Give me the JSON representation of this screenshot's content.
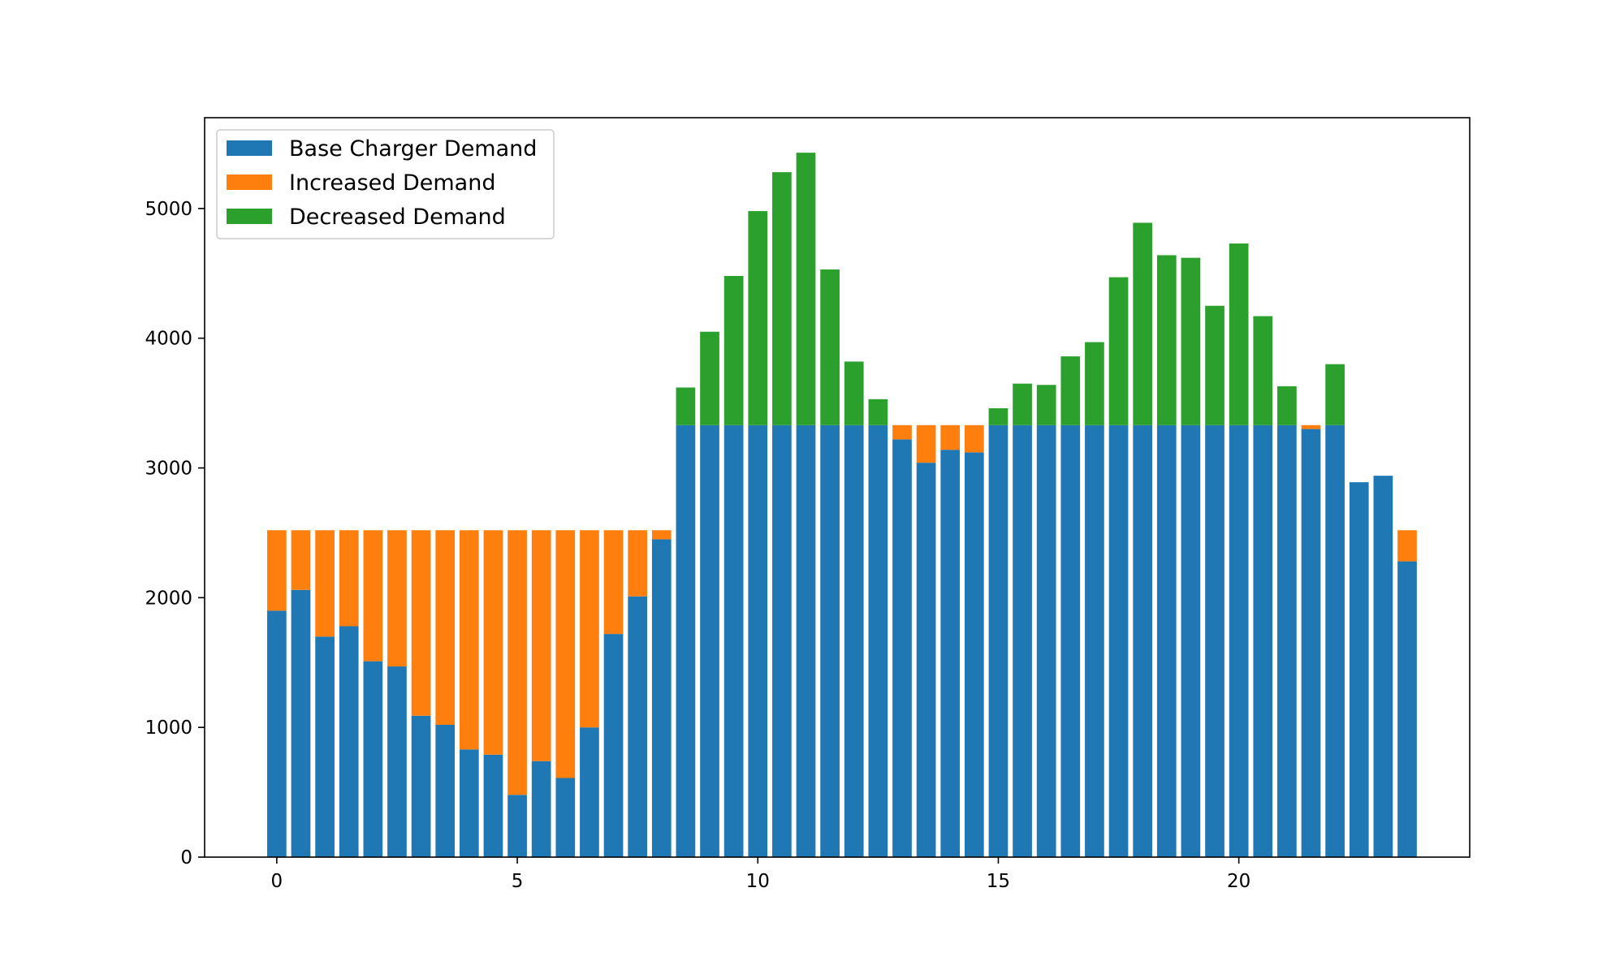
{
  "chart_data": {
    "type": "bar",
    "stacked": true,
    "x": [
      0,
      0.5,
      1,
      1.5,
      2,
      2.5,
      3,
      3.5,
      4,
      4.5,
      5,
      5.5,
      6,
      6.5,
      7,
      7.5,
      8,
      8.5,
      9,
      9.5,
      10,
      10.5,
      11,
      11.5,
      12,
      12.5,
      13,
      13.5,
      14,
      14.5,
      15,
      15.5,
      16,
      16.5,
      17,
      17.5,
      18,
      18.5,
      19,
      19.5,
      20,
      20.5,
      21,
      21.5,
      22,
      22.5,
      23,
      23.5
    ],
    "series": [
      {
        "name": "Base Charger Demand",
        "color": "#1f77b4",
        "values": [
          1900,
          2060,
          1700,
          1780,
          1510,
          1470,
          1090,
          1020,
          830,
          790,
          480,
          740,
          610,
          1000,
          1720,
          2010,
          2450,
          3330,
          3330,
          3330,
          3330,
          3330,
          3330,
          3330,
          3330,
          3330,
          3220,
          3040,
          3140,
          3120,
          3330,
          3330,
          3330,
          3330,
          3330,
          3330,
          3330,
          3330,
          3330,
          3330,
          3330,
          3330,
          3330,
          3300,
          3330,
          2890,
          2940,
          2280
        ]
      },
      {
        "name": "Increased Demand",
        "color": "#ff7f0e",
        "values": [
          620,
          460,
          820,
          740,
          1010,
          1050,
          1430,
          1500,
          1690,
          1730,
          2040,
          1780,
          1910,
          1520,
          800,
          510,
          70,
          0,
          0,
          0,
          0,
          0,
          0,
          0,
          0,
          0,
          110,
          290,
          190,
          210,
          0,
          0,
          0,
          0,
          0,
          0,
          0,
          0,
          0,
          0,
          0,
          0,
          0,
          30,
          0,
          0,
          0,
          240
        ]
      },
      {
        "name": "Decreased Demand",
        "color": "#2ca02c",
        "values": [
          0,
          0,
          0,
          0,
          0,
          0,
          0,
          0,
          0,
          0,
          0,
          0,
          0,
          0,
          0,
          0,
          0,
          290,
          720,
          1150,
          1650,
          1950,
          2100,
          1200,
          490,
          200,
          0,
          0,
          0,
          0,
          130,
          320,
          310,
          530,
          640,
          1140,
          1560,
          1310,
          1290,
          920,
          1400,
          840,
          300,
          0,
          470,
          0,
          0,
          0
        ]
      }
    ],
    "xlim": [
      -1.5,
      24.8
    ],
    "ylim": [
      0,
      5700
    ],
    "xticks": [
      0,
      5,
      10,
      15,
      20
    ],
    "yticks": [
      0,
      1000,
      2000,
      3000,
      4000,
      5000
    ],
    "bar_width": 0.4,
    "grid": false,
    "legend_position": "upper-left",
    "title": "",
    "xlabel": "",
    "ylabel": ""
  }
}
